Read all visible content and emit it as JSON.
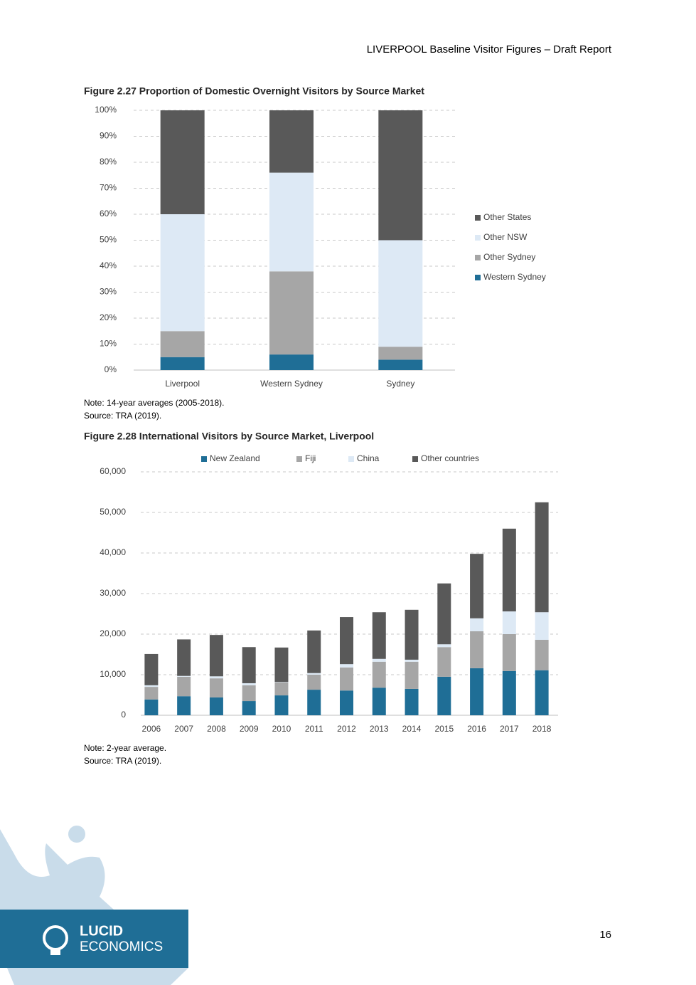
{
  "header": "LIVERPOOL Baseline Visitor Figures – Draft Report",
  "chart_data": [
    {
      "type": "stacked_bar",
      "title": "Figure 2.27 Proportion of Domestic Overnight Visitors by Source Market",
      "categories": [
        "Liverpool",
        "Western Sydney",
        "Sydney"
      ],
      "series": [
        {
          "name": "Western Sydney",
          "color": "#1f6e96",
          "values": [
            5,
            6,
            4
          ]
        },
        {
          "name": "Other Sydney",
          "color": "#a6a6a6",
          "values": [
            10,
            32,
            5
          ]
        },
        {
          "name": "Other NSW",
          "color": "#dde9f5",
          "values": [
            45,
            38,
            41
          ]
        },
        {
          "name": "Other States",
          "color": "#595959",
          "values": [
            40,
            24,
            50
          ]
        }
      ],
      "ylim": [
        0,
        100
      ],
      "yticks": [
        {
          "value": 0,
          "label": "0%"
        },
        {
          "value": 10,
          "label": "10%"
        },
        {
          "value": 20,
          "label": "20%"
        },
        {
          "value": 30,
          "label": "30%"
        },
        {
          "value": 40,
          "label": "40%"
        },
        {
          "value": 50,
          "label": "50%"
        },
        {
          "value": 60,
          "label": "60%"
        },
        {
          "value": 70,
          "label": "70%"
        },
        {
          "value": 80,
          "label": "80%"
        },
        {
          "value": 90,
          "label": "90%"
        },
        {
          "value": 100,
          "label": "100%"
        }
      ],
      "grid": true,
      "legend": "right"
    },
    {
      "type": "stacked_bar",
      "title": "Figure 2.28 International Visitors by Source Market, Liverpool",
      "categories": [
        "2006",
        "2007",
        "2008",
        "2009",
        "2010",
        "2011",
        "2012",
        "2013",
        "2014",
        "2015",
        "2016",
        "2017",
        "2018"
      ],
      "series": [
        {
          "name": "New Zealand",
          "color": "#1f6e96",
          "values": [
            3900,
            4700,
            4400,
            3500,
            4900,
            6300,
            6100,
            6800,
            6500,
            9500,
            11600,
            10900,
            11100
          ]
        },
        {
          "name": "Fiji",
          "color": "#a6a6a6",
          "values": [
            3100,
            4800,
            4700,
            3900,
            3200,
            3700,
            5700,
            6400,
            6700,
            7300,
            9100,
            9100,
            7500
          ]
        },
        {
          "name": "China",
          "color": "#dde9f5",
          "values": [
            400,
            200,
            500,
            500,
            100,
            400,
            800,
            700,
            500,
            700,
            3200,
            5600,
            6800
          ]
        },
        {
          "name": "Other countries",
          "color": "#595959",
          "values": [
            7700,
            9000,
            10200,
            8900,
            8500,
            10500,
            11600,
            11500,
            12300,
            15000,
            15900,
            20400,
            27100
          ]
        }
      ],
      "ylim": [
        0,
        60000
      ],
      "yticks": [
        0,
        {
          "value": 10000,
          "label": "10,000"
        },
        {
          "value": 20000,
          "label": "20,000"
        },
        {
          "value": 30000,
          "label": "30,000"
        },
        {
          "value": 40000,
          "label": "40,000"
        },
        {
          "value": 50000,
          "label": "50,000"
        },
        {
          "value": 60000,
          "label": "60,000"
        }
      ],
      "grid": true,
      "legend": "top"
    }
  ],
  "notes": [
    {
      "note": "Note: 14-year averages (2005-2018).",
      "source": "Source: TRA (2019)."
    },
    {
      "note": "Note: 2-year average.",
      "source": "Source: TRA (2019)."
    }
  ],
  "logo": {
    "line1": "LUCID",
    "line2": "ECONOMICS"
  },
  "page_number": "16"
}
